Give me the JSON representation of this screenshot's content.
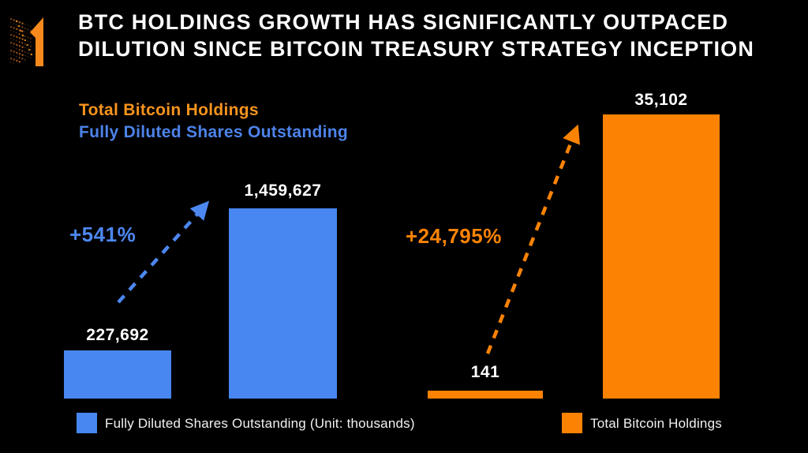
{
  "header": {
    "title_line1": "BTC HOLDINGS GROWTH HAS SIGNIFICANTLY OUTPACED",
    "title_line2": "DILUTION SINCE BITCOIN TREASURY STRATEGY INCEPTION"
  },
  "series_labels": {
    "bitcoin_label": "Total Bitcoin Holdings",
    "shares_label": "Fully Diluted Shares Outstanding"
  },
  "chart_data": {
    "type": "bar",
    "title": "BTC HOLDINGS GROWTH HAS SIGNIFICANTLY OUTPACED DILUTION SINCE BITCOIN TREASURY STRATEGY INCEPTION",
    "grid": false,
    "background": "#000000",
    "series": [
      {
        "name": "Fully Diluted Shares Outstanding",
        "unit_note": "Unit: thousands",
        "color": "#4887F1",
        "values": [
          227692,
          1459627
        ],
        "value_labels": [
          "227,692",
          "1,459,627"
        ],
        "growth": "+541%"
      },
      {
        "name": "Total Bitcoin Holdings",
        "color": "#FC8204",
        "values": [
          141,
          35102
        ],
        "value_labels": [
          "141",
          "35,102"
        ],
        "growth": "+24,795%"
      }
    ]
  },
  "legend": [
    {
      "label": "Fully Diluted Shares Outstanding (Unit: thousands)",
      "color": "#4887F1"
    },
    {
      "label": "Total Bitcoin Holdings",
      "color": "#FC8204"
    }
  ],
  "colors": {
    "background": "#000000",
    "title": "#FFFFFF",
    "blue": "#4887F1",
    "blue_text": "#4D83EA",
    "orange": "#FC8204",
    "orange_text": "#F7941D"
  }
}
